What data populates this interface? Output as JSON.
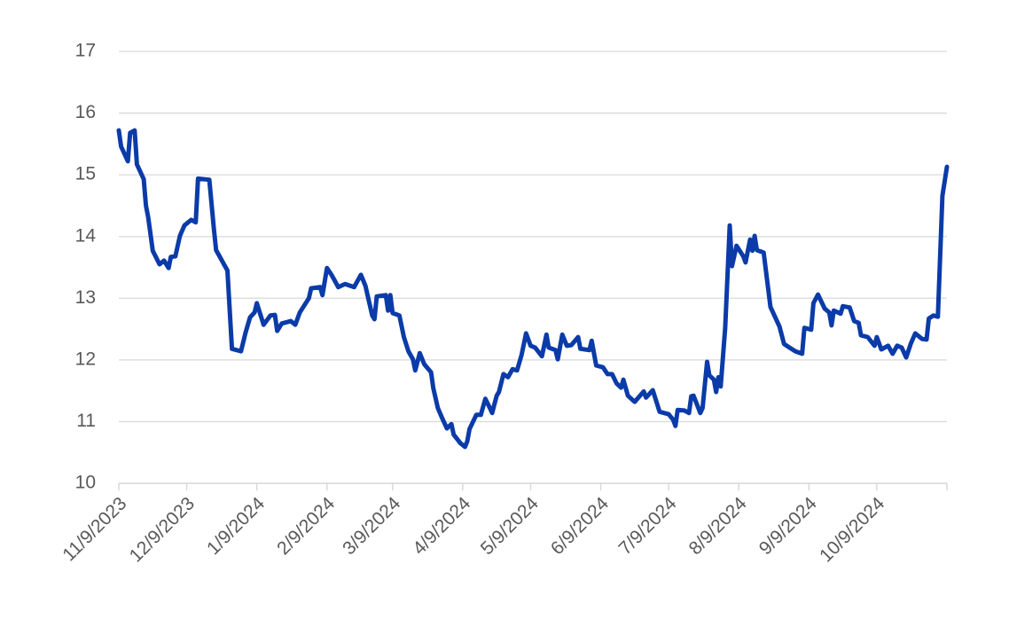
{
  "chart_data": {
    "type": "line",
    "x": [
      "11/9/2023",
      "11/10/2023",
      "11/13/2023",
      "11/14/2023",
      "11/16/2023",
      "11/17/2023",
      "11/20/2023",
      "11/21/2023",
      "11/22/2023",
      "11/24/2023",
      "11/27/2023",
      "11/29/2023",
      "12/1/2023",
      "12/2/2023",
      "12/4/2023",
      "12/6/2023",
      "12/8/2023",
      "12/11/2023",
      "12/13/2023",
      "12/14/2023",
      "12/19/2023",
      "12/21/2023",
      "12/22/2023",
      "12/27/2023",
      "12/29/2023",
      "1/2/2024",
      "1/4/2024",
      "1/6/2024",
      "1/8/2024",
      "1/9/2024",
      "1/12/2024",
      "1/15/2024",
      "1/17/2024",
      "1/18/2024",
      "1/20/2024",
      "1/24/2024",
      "1/26/2024",
      "1/28/2024",
      "2/1/2024",
      "2/2/2024",
      "2/6/2024",
      "2/7/2024",
      "2/9/2024",
      "2/11/2024",
      "2/14/2024",
      "2/17/2024",
      "2/21/2024",
      "2/24/2024",
      "2/26/2024",
      "2/29/2024",
      "3/1/2024",
      "3/2/2024",
      "3/6/2024",
      "3/7/2024",
      "3/8/2024",
      "3/9/2024",
      "3/12/2024",
      "3/14/2024",
      "3/16/2024",
      "3/18/2024",
      "3/19/2024",
      "3/21/2024",
      "3/23/2024",
      "3/26/2024",
      "3/27/2024",
      "3/29/2024",
      "3/31/2024",
      "4/2/2024",
      "4/4/2024",
      "4/5/2024",
      "4/8/2024",
      "4/10/2024",
      "4/11/2024",
      "4/12/2024",
      "4/15/2024",
      "4/17/2024",
      "4/19/2024",
      "4/21/2024",
      "4/22/2024",
      "4/24/2024",
      "4/25/2024",
      "4/27/2024",
      "4/29/2024",
      "5/1/2024",
      "5/3/2024",
      "5/5/2024",
      "5/7/2024",
      "5/9/2024",
      "5/11/2024",
      "5/14/2024",
      "5/16/2024",
      "5/17/2024",
      "5/20/2024",
      "5/21/2024",
      "5/23/2024",
      "5/25/2024",
      "5/27/2024",
      "5/30/2024",
      "5/31/2024",
      "6/4/2024",
      "6/5/2024",
      "6/7/2024",
      "6/10/2024",
      "6/12/2024",
      "6/14/2024",
      "6/16/2024",
      "6/18/2024",
      "6/19/2024",
      "6/21/2024",
      "6/24/2024",
      "6/28/2024",
      "6/29/2024",
      "7/2/2024",
      "7/5/2024",
      "7/9/2024",
      "7/11/2024",
      "7/12/2024",
      "7/13/2024",
      "7/16/2024",
      "7/18/2024",
      "7/19/2024",
      "7/20/2024",
      "7/23/2024",
      "7/24/2024",
      "7/26/2024",
      "7/27/2024",
      "7/29/2024",
      "7/30/2024",
      "7/31/2024",
      "8/1/2024",
      "8/3/2024",
      "8/5/2024",
      "8/6/2024",
      "8/8/2024",
      "8/11/2024",
      "8/12/2024",
      "8/14/2024",
      "8/15/2024",
      "8/16/2024",
      "8/17/2024",
      "8/20/2024",
      "8/23/2024",
      "8/25/2024",
      "8/27/2024",
      "8/29/2024",
      "8/31/2024",
      "9/3/2024",
      "9/6/2024",
      "9/7/2024",
      "9/10/2024",
      "9/11/2024",
      "9/13/2024",
      "9/16/2024",
      "9/18/2024",
      "9/19/2024",
      "9/20/2024",
      "9/23/2024",
      "9/24/2024",
      "9/27/2024",
      "9/29/2024",
      "10/1/2024",
      "10/2/2024",
      "10/5/2024",
      "10/8/2024",
      "10/9/2024",
      "10/11/2024",
      "10/14/2024",
      "10/16/2024",
      "10/18/2024",
      "10/20/2024",
      "10/22/2024",
      "10/24/2024",
      "10/26/2024",
      "10/29/2024",
      "10/31/2024",
      "11/1/2024",
      "11/3/2024",
      "11/5/2024",
      "11/7/2024",
      "11/9/2024"
    ],
    "series": [
      {
        "color": "#0b3ba8",
        "values": [
          15.72,
          15.46,
          15.22,
          15.68,
          15.72,
          15.17,
          14.93,
          14.5,
          14.31,
          13.77,
          13.55,
          13.61,
          13.49,
          13.67,
          13.68,
          14.01,
          14.18,
          14.27,
          14.23,
          14.94,
          14.92,
          14.13,
          13.78,
          13.45,
          12.18,
          12.14,
          12.44,
          12.69,
          12.77,
          12.92,
          12.57,
          12.72,
          12.73,
          12.47,
          12.59,
          12.63,
          12.57,
          12.77,
          13.0,
          13.16,
          13.18,
          13.05,
          13.49,
          13.38,
          13.18,
          13.23,
          13.18,
          13.38,
          13.2,
          12.72,
          12.66,
          13.03,
          13.05,
          12.8,
          13.05,
          12.76,
          12.72,
          12.37,
          12.14,
          12.01,
          11.83,
          12.11,
          11.93,
          11.8,
          11.54,
          11.22,
          11.05,
          10.89,
          10.96,
          10.79,
          10.65,
          10.59,
          10.68,
          10.88,
          11.11,
          11.11,
          11.37,
          11.22,
          11.14,
          11.42,
          11.48,
          11.77,
          11.72,
          11.85,
          11.83,
          12.08,
          12.43,
          12.23,
          12.2,
          12.06,
          12.41,
          12.2,
          12.16,
          12.01,
          12.41,
          12.23,
          12.24,
          12.37,
          12.18,
          12.16,
          12.31,
          11.91,
          11.88,
          11.77,
          11.77,
          11.62,
          11.55,
          11.68,
          11.42,
          11.32,
          11.49,
          11.39,
          11.51,
          11.16,
          11.12,
          11.03,
          10.93,
          11.19,
          11.18,
          11.14,
          11.41,
          11.42,
          11.14,
          11.22,
          11.97,
          11.75,
          11.68,
          11.48,
          11.72,
          11.57,
          12.52,
          14.18,
          13.52,
          13.85,
          13.68,
          13.58,
          13.95,
          13.77,
          14.01,
          13.78,
          13.74,
          12.86,
          12.7,
          12.54,
          12.26,
          12.21,
          12.14,
          12.1,
          12.52,
          12.49,
          12.92,
          13.06,
          12.83,
          12.77,
          12.56,
          12.8,
          12.75,
          12.87,
          12.85,
          12.63,
          12.6,
          12.4,
          12.37,
          12.23,
          12.37,
          12.17,
          12.23,
          12.1,
          12.23,
          12.2,
          12.04,
          12.26,
          12.43,
          12.34,
          12.33,
          12.67,
          12.72,
          12.7,
          14.66,
          15.13
        ]
      }
    ],
    "xlim": [
      "11/9/2023",
      "11/9/2024"
    ],
    "xticks": [
      "11/9/2023",
      "12/9/2023",
      "1/9/2024",
      "2/9/2024",
      "3/9/2024",
      "4/9/2024",
      "5/9/2024",
      "6/9/2024",
      "7/9/2024",
      "8/9/2024",
      "9/9/2024",
      "10/9/2024"
    ],
    "ylim": [
      10,
      17
    ],
    "yticks": [
      10,
      11,
      12,
      13,
      14,
      15,
      16,
      17
    ],
    "grid": true
  }
}
